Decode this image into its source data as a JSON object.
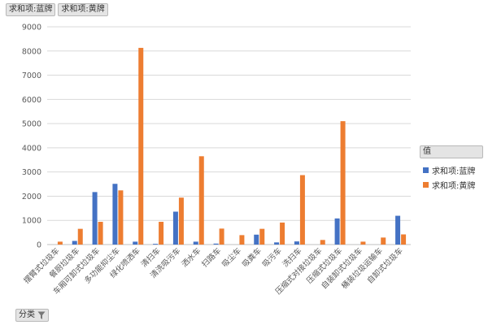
{
  "top_buttons": [
    "求和项:蓝牌",
    "求和项:黄牌"
  ],
  "legend": {
    "title": "值"
  },
  "bottom_button": {
    "label": "分类"
  },
  "icons": {
    "filter": "filter-icon"
  },
  "colors": {
    "blue": "#4472c4",
    "orange": "#ed7d31",
    "grid": "#d9d9d9",
    "axis": "#bfbfbf"
  },
  "chart_data": {
    "type": "bar",
    "categories": [
      "摆臂式垃圾车",
      "餐厨垃圾车",
      "车厢可卸式垃圾车",
      "多功能抑尘车",
      "绿化喷洒车",
      "清扫车",
      "清洗吸污车",
      "洒水车",
      "扫路车",
      "吸尘车",
      "吸粪车",
      "吸污车",
      "洗扫车",
      "压缩式对接垃圾车",
      "压缩式垃圾车",
      "自装卸式垃圾车",
      "桶装垃圾运输车",
      "自卸式垃圾车"
    ],
    "ylim": [
      0,
      9000
    ],
    "yticks": [
      0,
      1000,
      2000,
      3000,
      4000,
      5000,
      6000,
      7000,
      8000,
      9000
    ],
    "grid": true,
    "legend_position": "right",
    "series": [
      {
        "name": "求和项:蓝牌",
        "values": [
          0,
          150,
          2170,
          2510,
          120,
          30,
          1360,
          120,
          40,
          0,
          410,
          90,
          130,
          0,
          1080,
          0,
          0,
          1190
        ]
      },
      {
        "name": "求和项:黄牌",
        "values": [
          120,
          650,
          940,
          2240,
          8130,
          940,
          1940,
          3650,
          660,
          390,
          650,
          910,
          2870,
          190,
          5100,
          120,
          290,
          420
        ]
      }
    ]
  }
}
